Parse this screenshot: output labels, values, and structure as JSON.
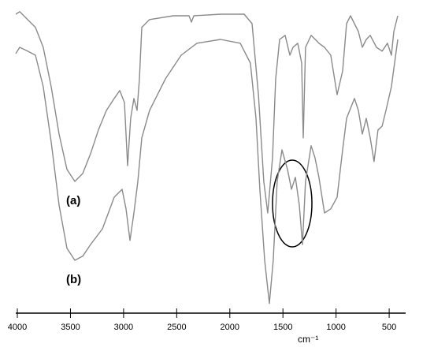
{
  "chart_data": {
    "type": "line",
    "x_label": "cm⁻¹",
    "annotations": [
      "(a)",
      "(b)"
    ],
    "xlim": [
      4015,
      345
    ],
    "ylim": [
      0,
      100
    ],
    "xticks": [
      4000,
      3500,
      3000,
      2500,
      2000,
      1500,
      1000,
      500
    ],
    "series": [
      {
        "name": "(a)",
        "color": "#8a8a8a",
        "x": [
          4015,
          3978,
          3904,
          3830,
          3756,
          3681,
          3607,
          3533,
          3459,
          3385,
          3311,
          3237,
          3162,
          3088,
          3036,
          2992,
          2962,
          2933,
          2903,
          2873,
          2851,
          2829,
          2755,
          2532,
          2384,
          2362,
          2339,
          2087,
          1865,
          1791,
          1731,
          1680,
          1643,
          1598,
          1568,
          1531,
          1479,
          1435,
          1405,
          1361,
          1324,
          1309,
          1287,
          1235,
          1161,
          1109,
          1050,
          990,
          938,
          901,
          864,
          790,
          753,
          716,
          679,
          619,
          567,
          516,
          479,
          456,
          419
        ],
        "values": [
          95.5,
          96.3,
          93.8,
          91.3,
          85,
          72.5,
          57.5,
          46.3,
          42.5,
          45,
          51.3,
          58.8,
          65,
          68.8,
          71.3,
          67.5,
          47.5,
          62.5,
          68.8,
          65,
          75,
          91.3,
          93.8,
          95,
          95,
          93,
          95,
          95.5,
          95.5,
          92.5,
          70,
          42.5,
          32.5,
          50,
          75,
          87.5,
          88.8,
          82.5,
          85,
          86.3,
          80,
          56.3,
          85,
          88.8,
          86.3,
          85,
          82.5,
          70,
          77.5,
          92.5,
          95,
          90,
          85,
          87.5,
          88.8,
          85,
          83.8,
          86.3,
          82.5,
          90,
          95
        ]
      },
      {
        "name": "(b)",
        "color": "#8a8a8a",
        "x": [
          4015,
          3978,
          3904,
          3830,
          3756,
          3681,
          3607,
          3533,
          3459,
          3385,
          3311,
          3199,
          3088,
          3014,
          2977,
          2940,
          2903,
          2866,
          2829,
          2755,
          2606,
          2458,
          2310,
          2087,
          1902,
          1806,
          1754,
          1717,
          1672,
          1628,
          1591,
          1554,
          1509,
          1457,
          1420,
          1383,
          1346,
          1316,
          1287,
          1235,
          1198,
          1161,
          1109,
          1050,
          990,
          938,
          901,
          827,
          790,
          753,
          716,
          679,
          642,
          605,
          567,
          530,
          479,
          419
        ],
        "values": [
          83,
          85,
          83.8,
          82.5,
          72.5,
          55,
          35,
          21.3,
          17.5,
          18.8,
          22.5,
          27.5,
          37.5,
          40,
          33.8,
          23.8,
          32.5,
          42.5,
          56.3,
          65,
          75,
          82.5,
          86.3,
          87.5,
          86.3,
          80,
          62.5,
          40,
          17.5,
          3.8,
          17.5,
          42.5,
          52.5,
          46.3,
          40,
          43.8,
          35,
          22.5,
          42.5,
          53.8,
          50,
          43.8,
          32.5,
          33.8,
          37.5,
          52.5,
          62.5,
          68.8,
          65,
          57.5,
          62.5,
          56.3,
          48.8,
          58.8,
          60,
          65,
          72.5,
          87.5
        ]
      }
    ]
  }
}
